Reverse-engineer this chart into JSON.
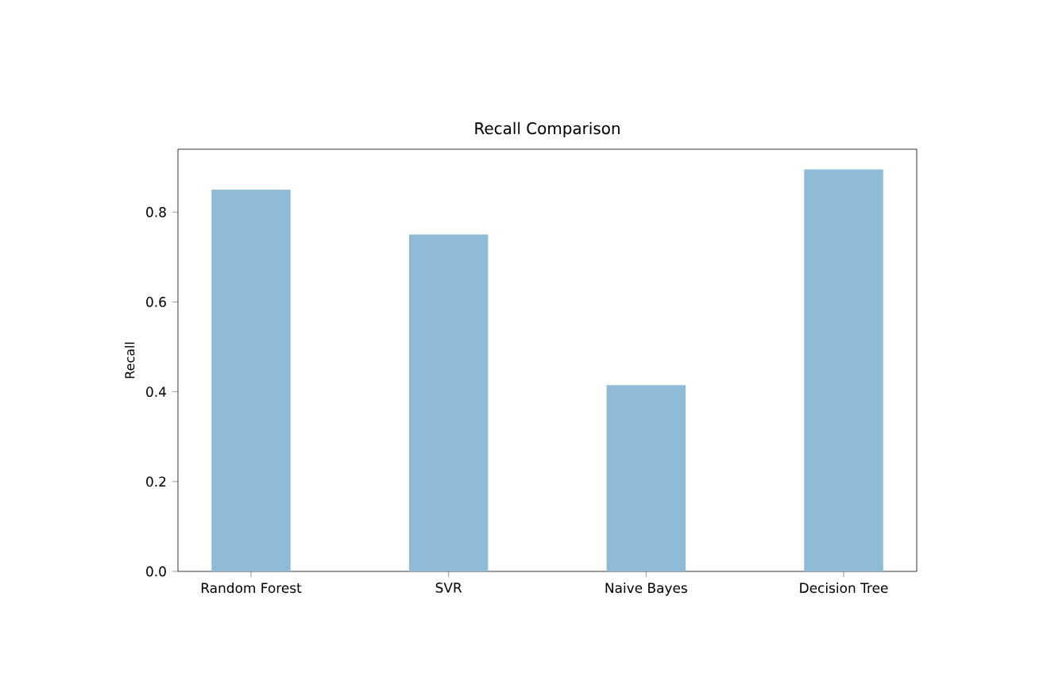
{
  "chart_data": {
    "type": "bar",
    "title": "Recall Comparison",
    "ylabel": "Recall",
    "categories": [
      "Random Forest",
      "SVR",
      "Naive Bayes",
      "Decision Tree"
    ],
    "values": [
      0.85,
      0.75,
      0.415,
      0.895
    ],
    "color": "#8fbbd9",
    "ylim": [
      0,
      0.94
    ],
    "yticks": [
      {
        "value": 0,
        "label": "0.0"
      },
      {
        "value": 0.2,
        "label": "0.2"
      },
      {
        "value": 0.4,
        "label": "0.4"
      },
      {
        "value": 0.6,
        "label": "0.6"
      },
      {
        "value": 0.8,
        "label": "0.8"
      }
    ],
    "grid": false
  }
}
